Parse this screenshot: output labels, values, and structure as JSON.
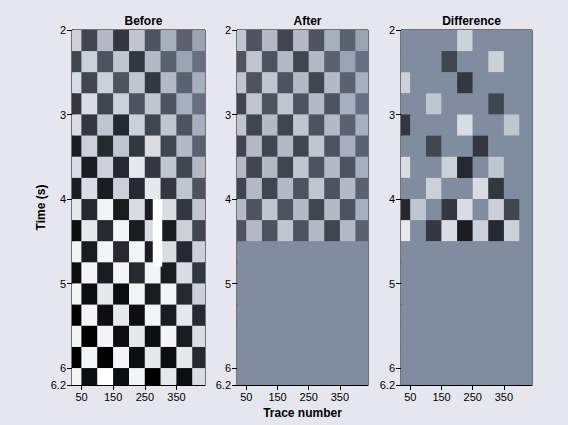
{
  "chart_data": [
    {
      "type": "seismic_image",
      "title": "Before",
      "ylabel": "Time (s)",
      "xlim": [
        20,
        440
      ],
      "xticks": [
        50,
        150,
        250,
        350
      ],
      "ylim": [
        2,
        6.2
      ],
      "yticks": [
        2,
        3,
        4,
        5,
        6
      ],
      "grid": false,
      "x_edges": [
        0,
        50,
        100,
        150,
        200,
        250,
        300,
        350,
        400,
        450
      ],
      "y_edges": [
        2,
        2.25,
        2.5,
        2.75,
        3,
        3.25,
        3.5,
        3.75,
        4,
        4.25,
        4.5,
        4.75,
        5,
        5.25,
        5.5,
        5.75,
        6,
        6.25
      ],
      "amplitude_range": [
        -1,
        1
      ],
      "amplitude": [
        [
          0.6,
          -0.5,
          0.4,
          -0.6,
          0.5,
          -0.4,
          0.3,
          -0.3,
          0.2
        ],
        [
          -0.5,
          0.6,
          -0.4,
          0.5,
          -0.6,
          0.4,
          -0.3,
          0.2,
          -0.2
        ],
        [
          0.7,
          -0.5,
          0.6,
          -0.4,
          0.5,
          -0.6,
          0.4,
          -0.3,
          0.3
        ],
        [
          -0.6,
          0.7,
          -0.5,
          0.6,
          -0.4,
          0.5,
          -0.4,
          0.3,
          -0.2
        ],
        [
          0.7,
          -0.6,
          0.5,
          -0.7,
          0.6,
          -0.5,
          0.5,
          -0.4,
          0.3
        ],
        [
          -0.8,
          0.6,
          -0.7,
          0.5,
          -0.6,
          0.7,
          -0.5,
          0.4,
          -0.3
        ],
        [
          0.7,
          -0.8,
          0.6,
          -0.7,
          0.8,
          -0.6,
          0.5,
          -0.5,
          0.4
        ],
        [
          -0.8,
          0.7,
          -0.8,
          0.6,
          -0.7,
          0.8,
          -0.6,
          0.5,
          -0.4
        ],
        [
          0.8,
          -0.7,
          0.9,
          -0.8,
          0.7,
          -0.8,
          0.7,
          -0.6,
          0.5
        ],
        [
          -0.9,
          0.8,
          -0.7,
          0.9,
          -0.8,
          0.7,
          -0.8,
          0.6,
          -0.5
        ],
        [
          0.9,
          -0.8,
          0.9,
          -0.7,
          0.9,
          -0.8,
          0.7,
          -0.7,
          0.6
        ],
        [
          -0.9,
          0.9,
          -0.8,
          0.9,
          -0.7,
          0.9,
          -0.8,
          0.7,
          -0.6
        ],
        [
          0.9,
          -0.9,
          0.8,
          -0.9,
          0.9,
          -0.8,
          0.9,
          -0.7,
          0.6
        ],
        [
          -1,
          0.9,
          -0.9,
          0.8,
          -0.9,
          0.9,
          -0.8,
          0.8,
          -0.7
        ],
        [
          0.9,
          -1,
          0.9,
          -0.9,
          0.8,
          -0.9,
          0.9,
          -0.8,
          0.7
        ],
        [
          -1,
          0.9,
          -1,
          0.9,
          -0.9,
          0.8,
          -0.9,
          0.8,
          -0.7
        ],
        [
          0.9,
          -0.9,
          1,
          -0.9,
          0.9,
          -1,
          0.8,
          -0.9,
          0.7
        ]
      ],
      "highlight": {
        "x": [
          275,
          305
        ],
        "y": [
          4.0,
          4.8
        ]
      }
    },
    {
      "type": "seismic_image",
      "title": "After",
      "xlabel": "Trace number",
      "xlim": [
        20,
        440
      ],
      "xticks": [
        50,
        150,
        250,
        350
      ],
      "ylim": [
        2,
        6.2
      ],
      "yticks": [
        2,
        3,
        4,
        5,
        6
      ],
      "grid": false,
      "x_edges": [
        0,
        50,
        100,
        150,
        200,
        250,
        300,
        350,
        400,
        450
      ],
      "y_edges": [
        2,
        2.25,
        2.5,
        2.75,
        3,
        3.25,
        3.5,
        3.75,
        4,
        4.25,
        4.5,
        4.75,
        5,
        5.25,
        5.5,
        5.75,
        6,
        6.25
      ],
      "amplitude_range": [
        -1,
        1
      ],
      "amplitude": [
        [
          0.5,
          -0.4,
          0.4,
          -0.5,
          0.4,
          -0.4,
          0.3,
          -0.3,
          0.2
        ],
        [
          -0.4,
          0.5,
          -0.4,
          0.4,
          -0.5,
          0.4,
          -0.3,
          0.2,
          -0.2
        ],
        [
          0.5,
          -0.4,
          0.5,
          -0.4,
          0.4,
          -0.5,
          0.4,
          -0.3,
          0.3
        ],
        [
          -0.5,
          0.5,
          -0.4,
          0.5,
          -0.4,
          0.4,
          -0.4,
          0.3,
          -0.2
        ],
        [
          0.5,
          -0.5,
          0.4,
          -0.5,
          0.5,
          -0.4,
          0.4,
          -0.3,
          0.3
        ],
        [
          -0.5,
          0.4,
          -0.5,
          0.4,
          -0.5,
          0.5,
          -0.4,
          0.3,
          -0.3
        ],
        [
          0.4,
          -0.5,
          0.4,
          -0.5,
          0.5,
          -0.4,
          0.4,
          -0.4,
          0.3
        ],
        [
          -0.5,
          0.4,
          -0.5,
          0.4,
          -0.4,
          0.5,
          -0.4,
          0.4,
          -0.3
        ],
        [
          0.4,
          -0.4,
          0.5,
          -0.4,
          0.4,
          -0.5,
          0.4,
          -0.4,
          0.3
        ],
        [
          -0.4,
          0.4,
          -0.4,
          0.5,
          -0.4,
          0.4,
          -0.5,
          0.4,
          -0.3
        ],
        [
          0,
          0,
          0,
          0,
          0,
          0,
          0,
          0,
          0
        ],
        [
          0,
          0,
          0,
          0,
          0,
          0,
          0,
          0,
          0
        ],
        [
          0,
          0,
          0,
          0,
          0,
          0,
          0,
          0,
          0
        ],
        [
          0,
          0,
          0,
          0,
          0,
          0,
          0,
          0,
          0
        ],
        [
          0,
          0,
          0,
          0,
          0,
          0,
          0,
          0,
          0
        ],
        [
          0,
          0,
          0,
          0,
          0,
          0,
          0,
          0,
          0
        ],
        [
          0,
          0,
          0,
          0,
          0,
          0,
          0,
          0,
          0
        ]
      ]
    },
    {
      "type": "seismic_image",
      "title": "Difference",
      "xlim": [
        20,
        440
      ],
      "xticks": [
        50,
        150,
        250,
        350
      ],
      "ylim": [
        2,
        6.2
      ],
      "yticks": [
        2,
        3,
        4,
        5,
        6
      ],
      "grid": false,
      "x_edges": [
        0,
        50,
        100,
        150,
        200,
        250,
        300,
        350,
        400,
        450
      ],
      "y_edges": [
        2,
        2.25,
        2.5,
        2.75,
        3,
        3.25,
        3.5,
        3.75,
        4,
        4.25,
        4.5,
        4.75,
        5,
        5.25,
        5.5,
        5.75,
        6,
        6.25
      ],
      "amplitude_range": [
        -1,
        1
      ],
      "amplitude": [
        [
          0,
          0,
          0,
          0,
          0.6,
          0,
          0,
          0,
          0
        ],
        [
          0,
          0,
          0,
          -0.5,
          0,
          0,
          0.6,
          0,
          0
        ],
        [
          0.6,
          0,
          0,
          0,
          -0.6,
          0,
          0,
          0,
          0
        ],
        [
          0,
          0,
          0.5,
          0,
          0,
          0,
          -0.5,
          0,
          0
        ],
        [
          -0.6,
          0,
          0,
          0,
          0.7,
          0,
          0,
          0.5,
          0
        ],
        [
          0,
          0,
          -0.5,
          0,
          0,
          -0.6,
          0,
          0,
          0
        ],
        [
          0.7,
          0,
          0,
          0.6,
          -0.7,
          0,
          0.5,
          0,
          0
        ],
        [
          0,
          0,
          0.6,
          0,
          0,
          0.7,
          -0.6,
          0,
          0
        ],
        [
          -0.7,
          0.5,
          0,
          -0.6,
          0.7,
          0,
          0.6,
          -0.5,
          0
        ],
        [
          0.8,
          0,
          -0.6,
          0.7,
          -0.8,
          0.6,
          -0.7,
          0.6,
          0
        ],
        [
          0,
          0,
          0,
          0,
          0,
          0,
          0,
          0,
          0
        ],
        [
          0,
          0,
          0,
          0,
          0,
          0,
          0,
          0,
          0
        ],
        [
          0,
          0,
          0,
          0,
          0,
          0,
          0,
          0,
          0
        ],
        [
          0,
          0,
          0,
          0,
          0,
          0,
          0,
          0,
          0
        ],
        [
          0,
          0,
          0,
          0,
          0,
          0,
          0,
          0,
          0
        ],
        [
          0,
          0,
          0,
          0,
          0,
          0,
          0,
          0,
          0
        ],
        [
          0,
          0,
          0,
          0,
          0,
          0,
          0,
          0,
          0
        ]
      ]
    }
  ]
}
